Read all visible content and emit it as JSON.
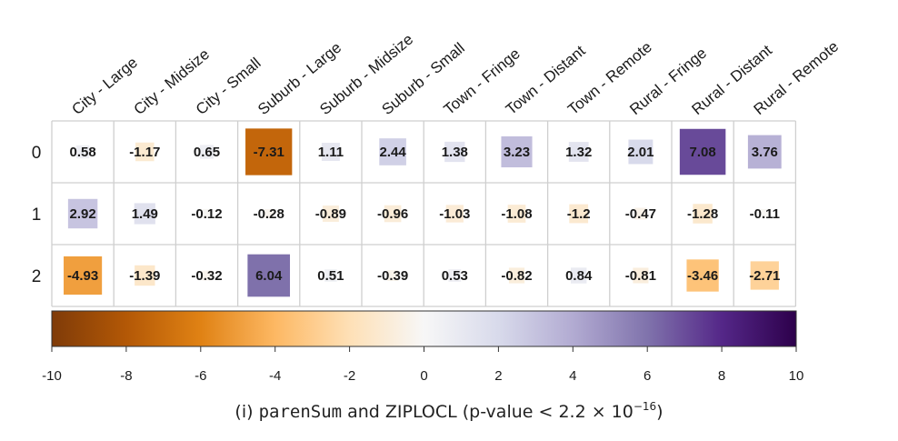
{
  "chart_data": {
    "type": "heatmap",
    "columns": [
      "City - Large",
      "City - Midsize",
      "City - Small",
      "Suburb - Large",
      "Suburb - Midsize",
      "Suburb - Small",
      "Town - Fringe",
      "Town - Distant",
      "Town - Remote",
      "Rural - Fringe",
      "Rural - Distant",
      "Rural - Remote"
    ],
    "rows": [
      "0",
      "1",
      "2"
    ],
    "values": [
      [
        0.58,
        -1.17,
        0.65,
        -7.31,
        1.11,
        2.44,
        1.38,
        3.23,
        1.32,
        2.01,
        7.08,
        3.76
      ],
      [
        2.92,
        1.49,
        -0.12,
        -0.28,
        -0.89,
        -0.96,
        -1.03,
        -1.08,
        -1.2,
        -0.47,
        -1.28,
        -0.11
      ],
      [
        -4.93,
        -1.39,
        -0.32,
        6.04,
        0.51,
        -0.39,
        0.53,
        -0.82,
        0.84,
        -0.81,
        -3.46,
        -2.71
      ]
    ],
    "value_labels": [
      [
        "0.58",
        "-1.17",
        "0.65",
        "-7.31",
        "1.11",
        "2.44",
        "1.38",
        "3.23",
        "1.32",
        "2.01",
        "7.08",
        "3.76"
      ],
      [
        "2.92",
        "1.49",
        "-0.12",
        "-0.28",
        "-0.89",
        "-0.96",
        "-1.03",
        "-1.08",
        "-1.2",
        "-0.47",
        "-1.28",
        "-0.11"
      ],
      [
        "-4.93",
        "-1.39",
        "-0.32",
        "6.04",
        "0.51",
        "-0.39",
        "0.53",
        "-0.82",
        "0.84",
        "-0.81",
        "-3.46",
        "-2.71"
      ]
    ],
    "colorbar": {
      "range": [
        -10,
        10
      ],
      "ticks": [
        "-10",
        "-8",
        "-6",
        "-4",
        "-2",
        "0",
        "2",
        "4",
        "6",
        "8",
        "10"
      ],
      "colors": [
        "#7f3b08",
        "#b35806",
        "#e08214",
        "#fdb863",
        "#fee0b6",
        "#f7f7f7",
        "#d8daeb",
        "#b2abd2",
        "#8073ac",
        "#542788",
        "#2d004b"
      ]
    },
    "cell_style": "square area proportional to magnitude",
    "grid": true
  },
  "caption": {
    "prefix": "(i) ",
    "code": "parenSum",
    "middle": " and ZIPLOCL (p-value < 2.2 × 10",
    "exponent": "−16",
    "suffix": ")"
  }
}
